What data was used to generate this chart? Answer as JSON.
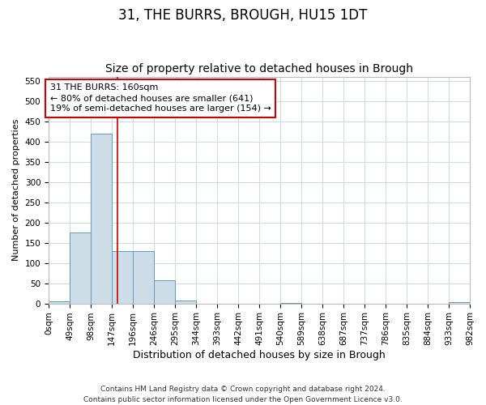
{
  "title1": "31, THE BURRS, BROUGH, HU15 1DT",
  "title2": "Size of property relative to detached houses in Brough",
  "xlabel": "Distribution of detached houses by size in Brough",
  "ylabel": "Number of detached properties",
  "bin_edges": [
    0,
    49,
    98,
    147,
    196,
    246,
    295,
    344,
    393,
    442,
    491,
    540,
    589,
    638,
    687,
    737,
    786,
    835,
    884,
    933,
    982
  ],
  "bar_heights": [
    5,
    175,
    420,
    130,
    130,
    57,
    8,
    0,
    0,
    0,
    0,
    2,
    0,
    0,
    0,
    0,
    0,
    0,
    0,
    3
  ],
  "bar_color": "#ccdde8",
  "bar_edge_color": "#6699bb",
  "grid_color": "#d0dde8",
  "property_sqm": 160,
  "property_line_color": "#cc0000",
  "annotation_line1": "31 THE BURRS: 160sqm",
  "annotation_line2": "← 80% of detached houses are smaller (641)",
  "annotation_line3": "19% of semi-detached houses are larger (154) →",
  "annotation_box_color": "#cc0000",
  "ylim": [
    0,
    560
  ],
  "yticks": [
    0,
    50,
    100,
    150,
    200,
    250,
    300,
    350,
    400,
    450,
    500,
    550
  ],
  "footer": "Contains HM Land Registry data © Crown copyright and database right 2024.\nContains public sector information licensed under the Open Government Licence v3.0.",
  "title1_fontsize": 12,
  "title2_fontsize": 10,
  "tick_fontsize": 7.5,
  "xlabel_fontsize": 9,
  "ylabel_fontsize": 8,
  "annotation_fontsize": 8,
  "footer_fontsize": 6.5
}
